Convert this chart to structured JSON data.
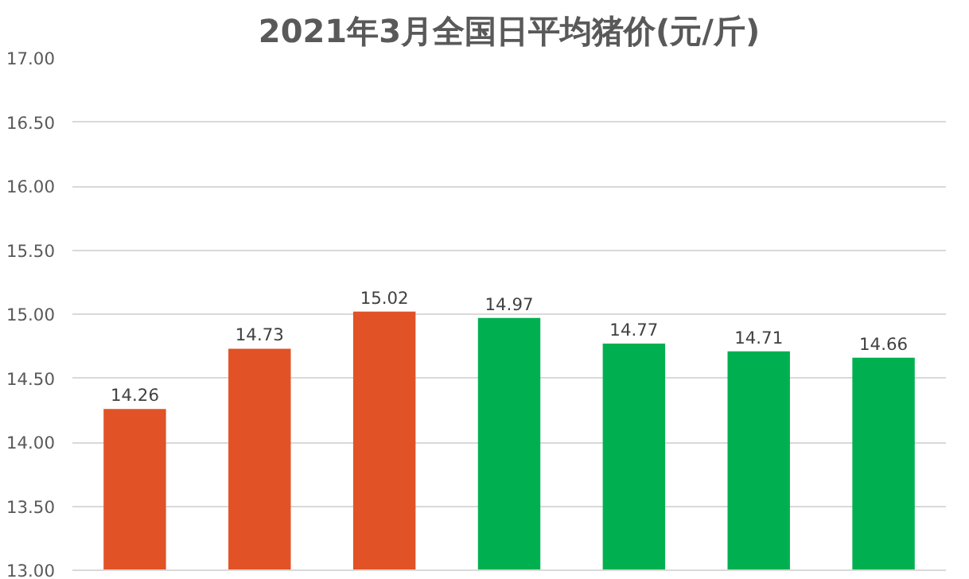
{
  "chart_data": {
    "type": "bar",
    "title": "2021年3月全国日平均猪价(元/斤)",
    "categories": [
      null,
      null,
      null,
      null,
      null,
      null,
      null
    ],
    "values": [
      14.26,
      14.73,
      15.02,
      14.97,
      14.77,
      14.71,
      14.66
    ],
    "colors": [
      "#e15226",
      "#e15226",
      "#e15226",
      "#00b050",
      "#00b050",
      "#00b050",
      "#00b050"
    ],
    "ylim": [
      13,
      17
    ],
    "yticks": [
      {
        "value": 13,
        "label": "13.00"
      },
      {
        "value": 13.5,
        "label": "13.50"
      },
      {
        "value": 14,
        "label": "14.00"
      },
      {
        "value": 14.5,
        "label": "14.50"
      },
      {
        "value": 15,
        "label": "15.00"
      },
      {
        "value": 15.5,
        "label": "15.50"
      },
      {
        "value": 16,
        "label": "16.00"
      },
      {
        "value": 16.5,
        "label": "16.50"
      },
      {
        "value": 17,
        "label": "17.00"
      }
    ],
    "grid": "y",
    "data_labels": true,
    "tick_labels": "y"
  }
}
